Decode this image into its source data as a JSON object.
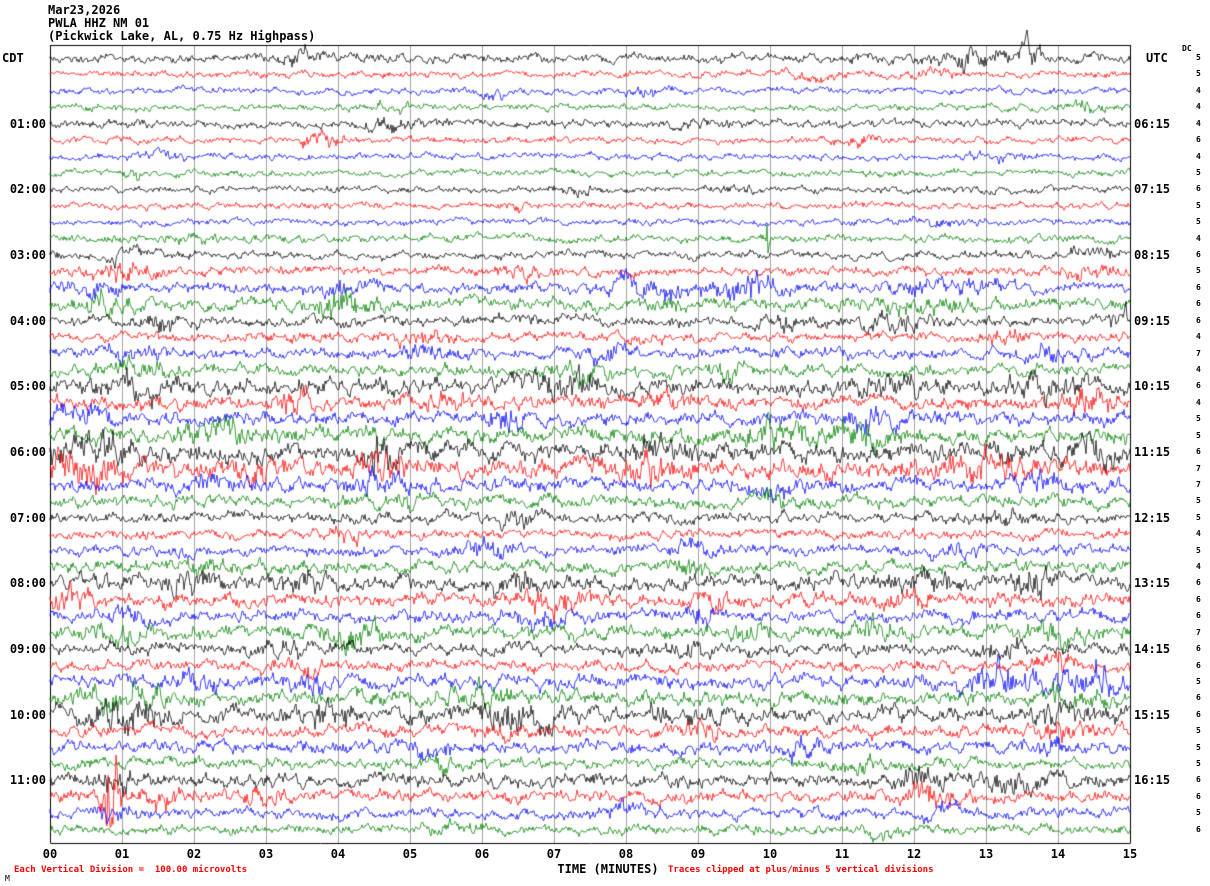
{
  "header": {
    "date": "Mar23,2026",
    "station": "PWLA HHZ NM 01",
    "subtitle": "(Pickwick Lake, AL, 0.75 Hz Highpass)"
  },
  "axes": {
    "tz_left": "CDT",
    "tz_right": "UTC",
    "dc_label": "DC",
    "x_title": "TIME (MINUTES)",
    "x_ticks": [
      "00",
      "01",
      "02",
      "03",
      "04",
      "05",
      "06",
      "07",
      "08",
      "09",
      "10",
      "11",
      "12",
      "13",
      "14",
      "15"
    ]
  },
  "footer": {
    "left_note": "Each Vertical Division =  100.00 microvolts",
    "right_note": "Traces clipped at plus/minus 5 vertical divisions",
    "corner_mark": "M"
  },
  "colors": {
    "trace_cycle": [
      "#000000",
      "#ff0000",
      "#0000ff",
      "#008000"
    ],
    "grid": "#8c8c8c",
    "frame": "#000000",
    "annotation": "#ff0000"
  },
  "chart_data": {
    "type": "seismogram-helicorder",
    "title": "PWLA HHZ NM 01 helicorder record, Mar 23 2026, 0.75 Hz highpass",
    "x_range_minutes": [
      0,
      15
    ],
    "minutes_per_line": 15,
    "lines_per_hour": 4,
    "clip_note_divisions": 5,
    "microvolts_per_division": 100.0,
    "left_hour_labels": [
      "01:00",
      "02:00",
      "03:00",
      "04:00",
      "05:00",
      "06:00",
      "07:00",
      "08:00",
      "09:00",
      "10:00",
      "11:00"
    ],
    "right_hour_labels": [
      "06:15",
      "07:15",
      "08:15",
      "09:15",
      "10:15",
      "11:15",
      "12:15",
      "13:15",
      "14:15",
      "15:15",
      "16:15"
    ],
    "rows": [
      {
        "c": 0,
        "left_label": "",
        "right_label": "",
        "scale": 5,
        "base": 3.5,
        "bursts": [
          [
            3.5,
            0.3,
            2
          ],
          [
            12.8,
            0.5,
            2.5
          ],
          [
            13.6,
            0.15,
            4
          ]
        ]
      },
      {
        "c": 1,
        "left_label": "",
        "right_label": "",
        "scale": 5,
        "base": 2.5,
        "bursts": [
          [
            10.6,
            0.4,
            2
          ],
          [
            12.2,
            0.3,
            1.8
          ]
        ]
      },
      {
        "c": 2,
        "left_label": "",
        "right_label": "",
        "scale": 4,
        "base": 2.5,
        "bursts": [
          [
            6.2,
            0.3,
            2
          ],
          [
            8.3,
            0.3,
            2
          ]
        ]
      },
      {
        "c": 3,
        "left_label": "",
        "right_label": "",
        "scale": 4,
        "base": 2.5,
        "bursts": [
          [
            4.8,
            0.4,
            1.8
          ],
          [
            14.3,
            0.3,
            2
          ]
        ]
      },
      {
        "c": 0,
        "left_label": "01:00",
        "right_label": "06:15",
        "scale": 4,
        "base": 3.0,
        "bursts": [
          [
            4.7,
            0.5,
            2.2
          ],
          [
            9.0,
            0.3,
            1.8
          ]
        ]
      },
      {
        "c": 1,
        "left_label": "",
        "right_label": "",
        "scale": 6,
        "base": 2.5,
        "bursts": [
          [
            3.8,
            0.25,
            3.5
          ],
          [
            10.8,
            0.4,
            1.6
          ],
          [
            11.3,
            0.2,
            2
          ]
        ]
      },
      {
        "c": 2,
        "left_label": "",
        "right_label": "",
        "scale": 4,
        "base": 2.5,
        "bursts": [
          [
            1.5,
            0.3,
            1.8
          ],
          [
            13.2,
            0.4,
            1.8
          ]
        ]
      },
      {
        "c": 3,
        "left_label": "",
        "right_label": "",
        "scale": 5,
        "base": 2.5,
        "bursts": [
          [
            1.2,
            0.2,
            2
          ]
        ]
      },
      {
        "c": 0,
        "left_label": "02:00",
        "right_label": "07:15",
        "scale": 6,
        "base": 2.5,
        "bursts": [
          [
            7.3,
            0.3,
            2
          ],
          [
            9.6,
            0.3,
            1.8
          ],
          [
            12.9,
            0.3,
            2
          ]
        ]
      },
      {
        "c": 1,
        "left_label": "",
        "right_label": "",
        "scale": 5,
        "base": 2.5,
        "bursts": [
          [
            6.5,
            0.2,
            2.2
          ]
        ]
      },
      {
        "c": 2,
        "left_label": "",
        "right_label": "",
        "scale": 5,
        "base": 2.5,
        "bursts": [
          [
            12.3,
            0.4,
            1.6
          ]
        ]
      },
      {
        "c": 3,
        "left_label": "",
        "right_label": "",
        "scale": 4,
        "base": 3.0,
        "bursts": [
          [
            9.95,
            0.04,
            8
          ],
          [
            2.0,
            0.3,
            1.8
          ]
        ]
      },
      {
        "c": 0,
        "left_label": "03:00",
        "right_label": "08:15",
        "scale": 6,
        "base": 3.0,
        "bursts": [
          [
            1.0,
            0.3,
            2.5
          ],
          [
            14.5,
            0.4,
            2
          ]
        ]
      },
      {
        "c": 1,
        "left_label": "",
        "right_label": "",
        "scale": 5,
        "base": 3.5,
        "bursts": [
          [
            1.0,
            0.4,
            3
          ],
          [
            6.5,
            0.3,
            1.8
          ],
          [
            14.4,
            0.3,
            2.2
          ]
        ]
      },
      {
        "c": 2,
        "left_label": "",
        "right_label": "",
        "scale": 6,
        "base": 4.0,
        "bursts": [
          [
            0.7,
            0.4,
            2.2
          ],
          [
            4.0,
            0.5,
            2
          ],
          [
            8.4,
            0.5,
            3.2
          ],
          [
            9.7,
            0.4,
            3.5
          ],
          [
            12.0,
            0.4,
            2.2
          ],
          [
            12.9,
            0.3,
            2.5
          ]
        ]
      },
      {
        "c": 3,
        "left_label": "",
        "right_label": "",
        "scale": 6,
        "base": 4.5,
        "bursts": [
          [
            0.8,
            0.3,
            2.5
          ],
          [
            4.1,
            0.4,
            2.8
          ],
          [
            8.6,
            0.3,
            2
          ],
          [
            12.1,
            0.5,
            2
          ]
        ]
      },
      {
        "c": 0,
        "left_label": "04:00",
        "right_label": "09:15",
        "scale": 6,
        "base": 4.0,
        "bursts": [
          [
            1.6,
            0.3,
            2.5
          ],
          [
            10.2,
            0.4,
            2
          ],
          [
            11.8,
            0.5,
            2.2
          ],
          [
            14.9,
            0.2,
            2.5
          ]
        ]
      },
      {
        "c": 1,
        "left_label": "",
        "right_label": "",
        "scale": 4,
        "base": 3.5,
        "bursts": [
          [
            5.2,
            0.4,
            2
          ],
          [
            8.0,
            0.3,
            1.8
          ],
          [
            13.3,
            0.3,
            2
          ]
        ]
      },
      {
        "c": 2,
        "left_label": "",
        "right_label": "",
        "scale": 7,
        "base": 4.0,
        "bursts": [
          [
            1.1,
            0.3,
            2.2
          ],
          [
            5.2,
            0.4,
            2
          ],
          [
            7.7,
            0.3,
            2
          ],
          [
            13.9,
            0.4,
            2
          ]
        ]
      },
      {
        "c": 3,
        "left_label": "",
        "right_label": "",
        "scale": 4,
        "base": 4.5,
        "bursts": [
          [
            1.2,
            0.4,
            2
          ],
          [
            7.4,
            0.5,
            2
          ],
          [
            9.4,
            0.3,
            1.8
          ]
        ]
      },
      {
        "c": 0,
        "left_label": "05:00",
        "right_label": "10:15",
        "scale": 6,
        "base": 6.0,
        "bursts": [
          [
            1.1,
            0.5,
            2.2
          ],
          [
            7.3,
            0.6,
            2
          ],
          [
            11.5,
            0.5,
            1.8
          ],
          [
            13.9,
            0.5,
            2
          ]
        ]
      },
      {
        "c": 1,
        "left_label": "",
        "right_label": "",
        "scale": 4,
        "base": 5.0,
        "bursts": [
          [
            3.4,
            0.2,
            3
          ],
          [
            5.5,
            0.4,
            2
          ],
          [
            8.7,
            0.4,
            1.8
          ],
          [
            14.4,
            0.4,
            2.5
          ]
        ]
      },
      {
        "c": 2,
        "left_label": "",
        "right_label": "",
        "scale": 5,
        "base": 5.0,
        "bursts": [
          [
            0.5,
            0.4,
            2
          ],
          [
            6.4,
            0.3,
            2.2
          ],
          [
            11.4,
            0.4,
            2
          ]
        ]
      },
      {
        "c": 3,
        "left_label": "",
        "right_label": "",
        "scale": 5,
        "base": 6.0,
        "bursts": [
          [
            2.3,
            0.4,
            2.2
          ],
          [
            10.0,
            0.5,
            2
          ],
          [
            11.3,
            0.4,
            2
          ]
        ]
      },
      {
        "c": 0,
        "left_label": "06:00",
        "right_label": "11:15",
        "scale": 6,
        "base": 7.0,
        "bursts": [
          [
            0.6,
            0.6,
            2.5
          ],
          [
            4.6,
            0.2,
            3.5
          ],
          [
            8.3,
            0.4,
            1.8
          ],
          [
            14.6,
            0.3,
            2.5
          ]
        ]
      },
      {
        "c": 1,
        "left_label": "",
        "right_label": "",
        "scale": 7,
        "base": 6.5,
        "bursts": [
          [
            0.5,
            0.5,
            2.8
          ],
          [
            2.8,
            0.4,
            2
          ],
          [
            4.6,
            0.3,
            2.5
          ],
          [
            8.3,
            0.4,
            2
          ],
          [
            13.0,
            0.5,
            2.2
          ]
        ]
      },
      {
        "c": 2,
        "left_label": "",
        "right_label": "",
        "scale": 7,
        "base": 5.0,
        "bursts": [
          [
            2.3,
            0.4,
            2
          ],
          [
            4.5,
            0.4,
            2.2
          ],
          [
            10.0,
            0.4,
            1.8
          ],
          [
            13.8,
            0.4,
            2
          ]
        ]
      },
      {
        "c": 3,
        "left_label": "",
        "right_label": "",
        "scale": 5,
        "base": 4.5,
        "bursts": [
          [
            5.0,
            0.4,
            1.8
          ],
          [
            10.1,
            0.3,
            1.8
          ]
        ]
      },
      {
        "c": 0,
        "left_label": "07:00",
        "right_label": "12:15",
        "scale": 5,
        "base": 4.0,
        "bursts": [
          [
            6.5,
            0.2,
            2.5
          ],
          [
            13.3,
            0.3,
            1.8
          ]
        ]
      },
      {
        "c": 1,
        "left_label": "",
        "right_label": "",
        "scale": 4,
        "base": 3.5,
        "bursts": [
          [
            4.1,
            0.3,
            2
          ]
        ]
      },
      {
        "c": 2,
        "left_label": "",
        "right_label": "",
        "scale": 5,
        "base": 4.0,
        "bursts": [
          [
            6.1,
            0.4,
            2.2
          ],
          [
            8.9,
            0.3,
            2
          ],
          [
            12.6,
            0.3,
            2
          ]
        ]
      },
      {
        "c": 3,
        "left_label": "",
        "right_label": "",
        "scale": 4,
        "base": 4.5,
        "bursts": [
          [
            2.3,
            0.3,
            2
          ],
          [
            9.0,
            0.3,
            2
          ]
        ]
      },
      {
        "c": 0,
        "left_label": "08:00",
        "right_label": "13:15",
        "scale": 6,
        "base": 5.5,
        "bursts": [
          [
            1.9,
            0.3,
            2.5
          ],
          [
            3.5,
            0.3,
            2.2
          ],
          [
            6.5,
            0.4,
            2
          ],
          [
            12.2,
            0.4,
            2
          ],
          [
            13.7,
            0.4,
            2.5
          ]
        ]
      },
      {
        "c": 1,
        "left_label": "",
        "right_label": "",
        "scale": 6,
        "base": 5.0,
        "bursts": [
          [
            0.3,
            0.3,
            2.5
          ],
          [
            7.0,
            0.4,
            2.2
          ],
          [
            9.3,
            0.3,
            2
          ],
          [
            11.9,
            0.3,
            2
          ]
        ]
      },
      {
        "c": 2,
        "left_label": "",
        "right_label": "",
        "scale": 6,
        "base": 4.5,
        "bursts": [
          [
            1.1,
            0.3,
            2
          ],
          [
            6.8,
            0.4,
            2
          ],
          [
            9.0,
            0.3,
            2
          ]
        ]
      },
      {
        "c": 3,
        "left_label": "",
        "right_label": "",
        "scale": 7,
        "base": 5.0,
        "bursts": [
          [
            0.9,
            0.4,
            2
          ],
          [
            4.2,
            0.4,
            2.8
          ],
          [
            9.7,
            0.3,
            2
          ],
          [
            11.4,
            0.4,
            2.2
          ],
          [
            13.9,
            0.4,
            2.2
          ]
        ]
      },
      {
        "c": 0,
        "left_label": "09:00",
        "right_label": "14:15",
        "scale": 6,
        "base": 4.5,
        "bursts": [
          [
            3.3,
            0.3,
            2
          ],
          [
            8.9,
            0.4,
            1.8
          ],
          [
            13.2,
            0.3,
            2
          ]
        ]
      },
      {
        "c": 1,
        "left_label": "",
        "right_label": "",
        "scale": 6,
        "base": 4.0,
        "bursts": [
          [
            3.4,
            0.4,
            2
          ],
          [
            14.0,
            0.3,
            2
          ]
        ]
      },
      {
        "c": 2,
        "left_label": "",
        "right_label": "",
        "scale": 5,
        "base": 5.0,
        "bursts": [
          [
            2.1,
            0.4,
            2
          ],
          [
            3.6,
            0.3,
            2.2
          ],
          [
            13.3,
            0.6,
            3
          ],
          [
            14.5,
            0.4,
            3
          ]
        ]
      },
      {
        "c": 3,
        "left_label": "",
        "right_label": "",
        "scale": 6,
        "base": 5.5,
        "bursts": [
          [
            1.0,
            0.5,
            2.5
          ],
          [
            5.8,
            0.5,
            2
          ],
          [
            14.2,
            0.4,
            2
          ]
        ]
      },
      {
        "c": 0,
        "left_label": "10:00",
        "right_label": "15:15",
        "scale": 6,
        "base": 6.0,
        "bursts": [
          [
            1.1,
            0.5,
            2.5
          ],
          [
            3.8,
            0.4,
            2.2
          ],
          [
            6.5,
            0.5,
            2.5
          ],
          [
            8.8,
            0.4,
            2
          ],
          [
            14.0,
            0.4,
            2
          ]
        ]
      },
      {
        "c": 1,
        "left_label": "",
        "right_label": "",
        "scale": 5,
        "base": 4.5,
        "bursts": [
          [
            6.3,
            0.3,
            2
          ],
          [
            9.0,
            0.3,
            2
          ],
          [
            14.0,
            0.3,
            2.2
          ]
        ]
      },
      {
        "c": 2,
        "left_label": "",
        "right_label": "",
        "scale": 5,
        "base": 4.5,
        "bursts": [
          [
            5.3,
            0.4,
            2
          ],
          [
            10.4,
            0.3,
            2.2
          ],
          [
            14.0,
            0.3,
            2
          ]
        ]
      },
      {
        "c": 3,
        "left_label": "",
        "right_label": "",
        "scale": 5,
        "base": 4.0,
        "bursts": [
          [
            5.5,
            0.4,
            2
          ],
          [
            11.2,
            0.3,
            2
          ]
        ]
      },
      {
        "c": 0,
        "left_label": "11:00",
        "right_label": "16:15",
        "scale": 6,
        "base": 5.0,
        "bursts": [
          [
            0.9,
            0.3,
            2.5
          ],
          [
            12.1,
            0.4,
            2.2
          ],
          [
            13.3,
            0.4,
            2.5
          ]
        ]
      },
      {
        "c": 1,
        "left_label": "",
        "right_label": "",
        "scale": 6,
        "base": 4.5,
        "bursts": [
          [
            0.85,
            0.12,
            9
          ],
          [
            1.6,
            0.3,
            2.5
          ],
          [
            3.0,
            0.3,
            2
          ],
          [
            12.2,
            0.4,
            2.5
          ]
        ]
      },
      {
        "c": 2,
        "left_label": "",
        "right_label": "",
        "scale": 5,
        "base": 4.0,
        "bursts": [
          [
            0.9,
            0.3,
            2
          ],
          [
            8.0,
            0.3,
            2.2
          ],
          [
            12.4,
            0.3,
            2
          ]
        ]
      },
      {
        "c": 3,
        "left_label": "",
        "right_label": "",
        "scale": 6,
        "base": 3.5,
        "bursts": [
          [
            5.6,
            0.4,
            2
          ],
          [
            11.5,
            0.3,
            1.8
          ]
        ]
      }
    ]
  }
}
